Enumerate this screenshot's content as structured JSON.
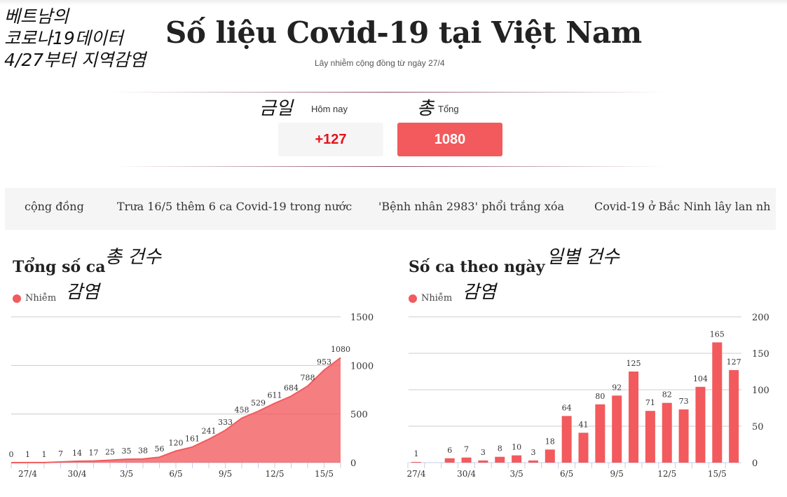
{
  "annotations": {
    "header_kr": [
      "베트남의",
      "코로나19데이터",
      "4/27부터 지역감염"
    ],
    "today_kr": "금일",
    "total_kr": "총",
    "chart1_kr": "총 건수",
    "chart2_kr": "일별 건수",
    "legend_kr": "감염"
  },
  "header": {
    "title": "Số liệu Covid-19 tại Việt Nam",
    "subtitle": "Lây nhiễm cộng đồng từ ngày 27/4"
  },
  "stats": {
    "today_label": "Hôm nay",
    "today_value": "+127",
    "total_label": "Tổng",
    "total_value": "1080",
    "today_color": "#e8101a",
    "total_bg": "#f25a5d"
  },
  "news": [
    "cộng đồng",
    "Trưa 16/5 thêm 6 ca Covid-19 trong nước",
    "'Bệnh nhân 2983' phổi trắng xóa",
    "Covid-19 ở Bắc Ninh lây lan nh"
  ],
  "chart_data": [
    {
      "type": "area",
      "title": "Tổng số ca",
      "legend": [
        "Nhiễm"
      ],
      "color": "#f25a5d",
      "x": [
        "26/4",
        "27/4",
        "28/4",
        "29/4",
        "30/4",
        "1/5",
        "2/5",
        "3/5",
        "4/5",
        "5/5",
        "6/5",
        "7/5",
        "8/5",
        "9/5",
        "10/5",
        "11/5",
        "12/5",
        "13/5",
        "14/5",
        "15/5",
        "16/5"
      ],
      "values": [
        0,
        1,
        1,
        7,
        14,
        17,
        25,
        35,
        38,
        56,
        120,
        161,
        241,
        333,
        458,
        529,
        611,
        684,
        788,
        953,
        1080
      ],
      "xticks": [
        "27/4",
        "30/4",
        "3/5",
        "6/5",
        "9/5",
        "12/5",
        "15/5"
      ],
      "yticks": [
        0,
        500,
        1000,
        1500
      ],
      "ylim": [
        0,
        1500
      ],
      "grid": true,
      "yaxis": "right"
    },
    {
      "type": "bar",
      "title": "Số ca theo ngày",
      "legend": [
        "Nhiễm"
      ],
      "color": "#f25a5d",
      "x": [
        "27/4",
        "28/4",
        "29/4",
        "30/4",
        "1/5",
        "2/5",
        "3/5",
        "4/5",
        "5/5",
        "6/5",
        "7/5",
        "8/5",
        "9/5",
        "10/5",
        "11/5",
        "12/5",
        "13/5",
        "14/5",
        "15/5",
        "16/5"
      ],
      "values": [
        1,
        0,
        6,
        7,
        3,
        8,
        10,
        3,
        18,
        64,
        41,
        80,
        92,
        125,
        71,
        82,
        73,
        104,
        165,
        127
      ],
      "xticks": [
        "27/4",
        "30/4",
        "3/5",
        "6/5",
        "9/5",
        "12/5",
        "15/5"
      ],
      "yticks": [
        0,
        50,
        100,
        150,
        200
      ],
      "ylim": [
        0,
        200
      ],
      "grid": true,
      "yaxis": "right"
    }
  ]
}
